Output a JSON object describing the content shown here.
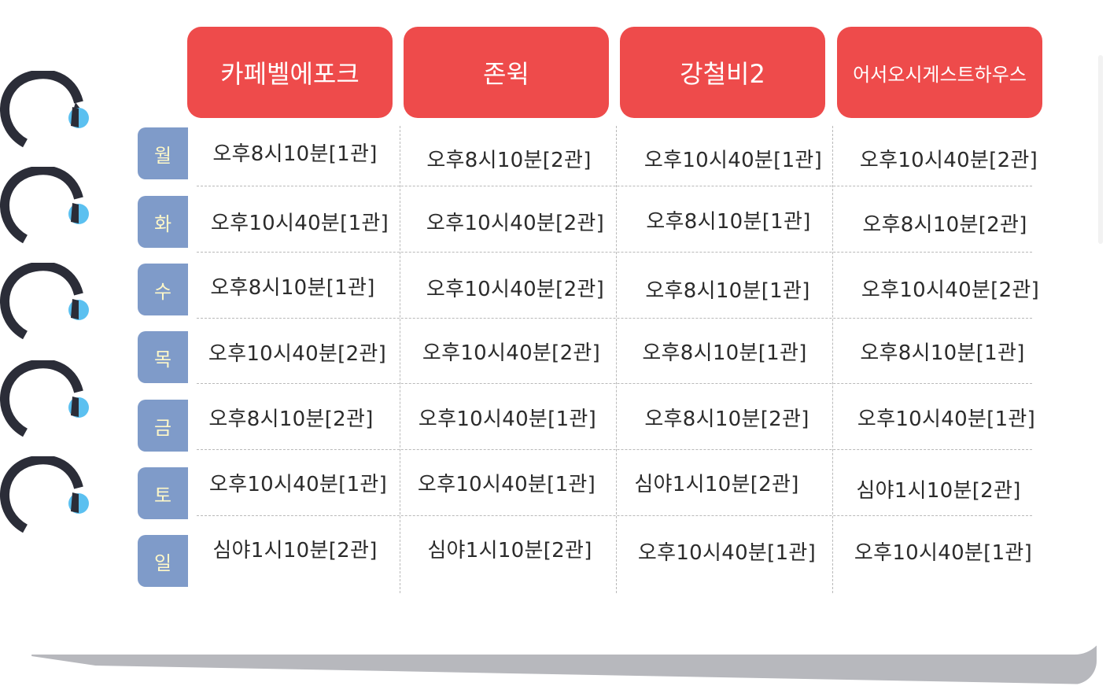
{
  "colors": {
    "header_bg": "#ee4b4b",
    "header_text": "#ffffff",
    "day_bg": "#7f9bc9",
    "day_text": "#fff8c8",
    "ring": "#2b2d38",
    "ring_tab": "#5bc0f0",
    "cell_text": "#2b2b2b",
    "grid_line": "#b9b9b9"
  },
  "venues": [
    "카페벨에포크",
    "존윅",
    "강철비2",
    "어서오시게스트하우스"
  ],
  "days": [
    "월",
    "화",
    "수",
    "목",
    "금",
    "토",
    "일"
  ],
  "schedule": [
    [
      "오후8시10분[1관]",
      "오후8시10분[2관]",
      "오후10시40분[1관]",
      "오후10시40분[2관]"
    ],
    [
      "오후10시40분[1관]",
      "오후10시40분[2관]",
      "오후8시10분[1관]",
      "오후8시10분[2관]"
    ],
    [
      "오후8시10분[1관]",
      "오후10시40분[2관]",
      "오후8시10분[1관]",
      "오후10시40분[2관]"
    ],
    [
      "오후10시40분[2관]",
      "오후10시40분[2관]",
      "오후8시10분[1관]",
      "오후8시10분[1관]"
    ],
    [
      "오후8시10분[2관]",
      "오후10시40분[1관]",
      "오후8시10분[2관]",
      "오후10시40분[1관]"
    ],
    [
      "오후10시40분[1관]",
      "오후10시40분[1관]",
      "심야1시10분[2관]",
      "심야1시10분[2관]"
    ],
    [
      "심야1시10분[2관]",
      "심야1시10분[2관]",
      "오후10시40분[1관]",
      "오후10시40분[1관]"
    ]
  ]
}
